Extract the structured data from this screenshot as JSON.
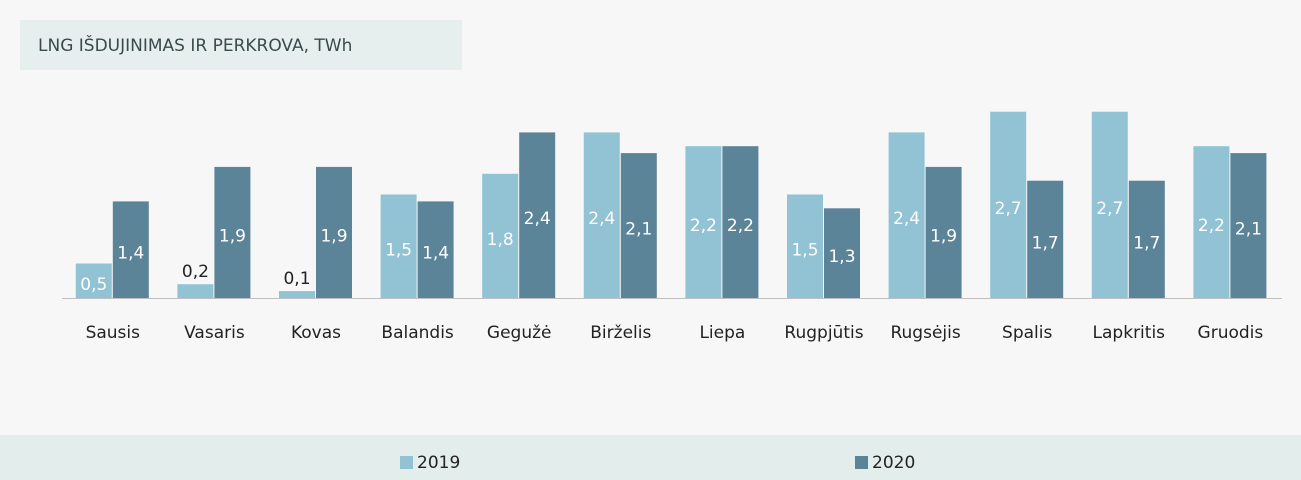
{
  "chart_data": {
    "type": "bar",
    "title": "LNG IŠDUJINIMAS IR PERKROVA, TWh",
    "categories": [
      "Sausis",
      "Vasaris",
      "Kovas",
      "Balandis",
      "Gegužė",
      "Birželis",
      "Liepa",
      "Rugpjūtis",
      "Rugsėjis",
      "Spalis",
      "Lapkritis",
      "Gruodis"
    ],
    "series": [
      {
        "name": "2019",
        "color": "#92c3d5",
        "values": [
          0.5,
          0.2,
          0.1,
          1.5,
          1.8,
          2.4,
          2.2,
          1.5,
          2.4,
          2.7,
          2.7,
          2.2
        ],
        "value_labels": [
          "0,5",
          "0,2",
          "0,1",
          "1,5",
          "1,8",
          "2,4",
          "2,2",
          "1,5",
          "2,4",
          "2,7",
          "2,7",
          "2,2"
        ]
      },
      {
        "name": "2020",
        "color": "#5b8499",
        "values": [
          1.4,
          1.9,
          1.9,
          1.4,
          2.4,
          2.1,
          2.2,
          1.3,
          1.9,
          1.7,
          1.7,
          2.1
        ],
        "value_labels": [
          "1,4",
          "1,9",
          "1,9",
          "1,4",
          "2,4",
          "2,1",
          "2,2",
          "1,3",
          "1,9",
          "1,7",
          "1,7",
          "2,1"
        ]
      }
    ]
  }
}
